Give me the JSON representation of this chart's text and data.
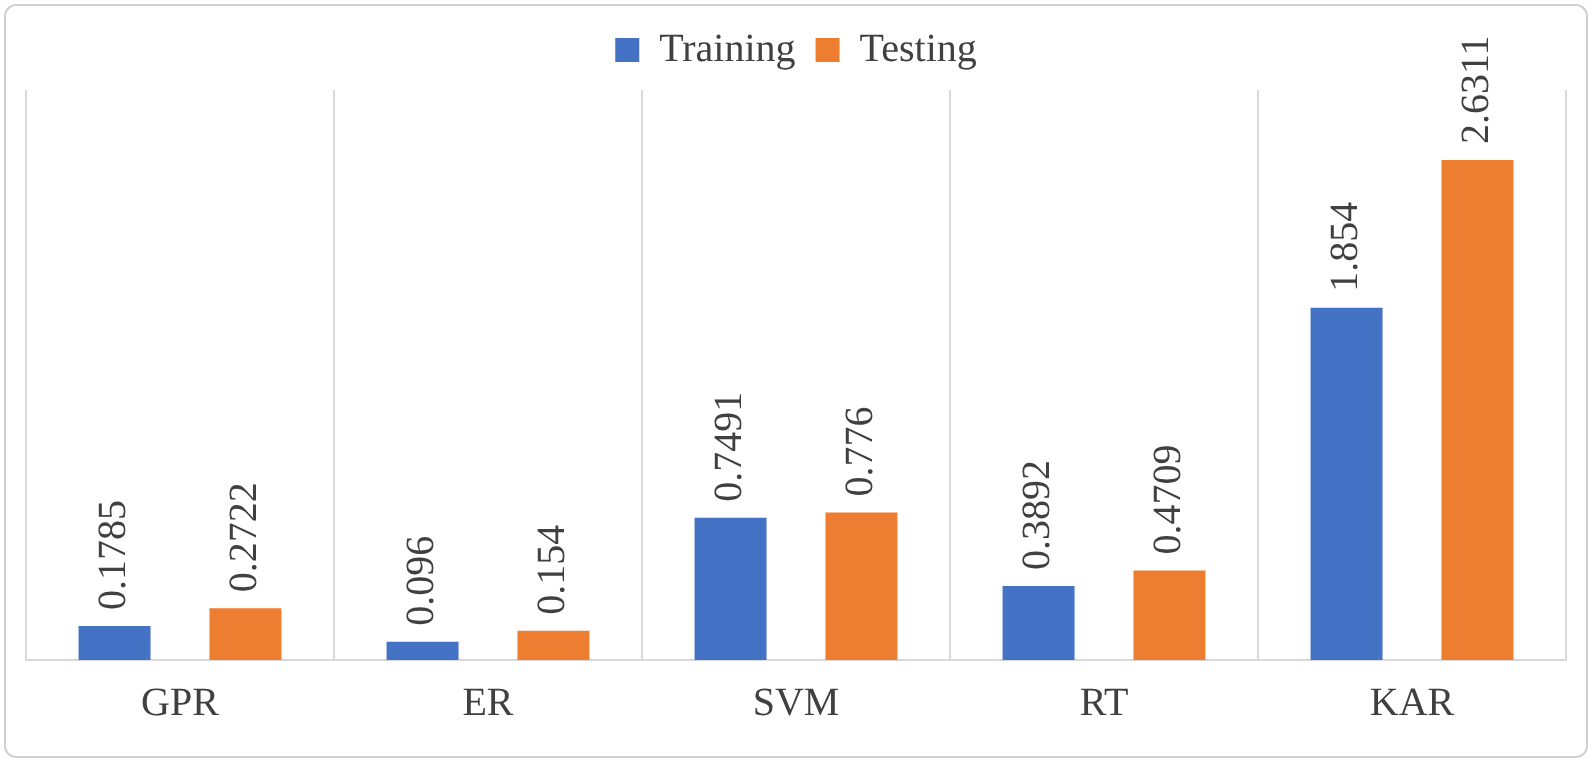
{
  "chart_data": {
    "type": "bar",
    "categories": [
      "GPR",
      "ER",
      "SVM",
      "RT",
      "KAR"
    ],
    "series": [
      {
        "name": "Training",
        "color": "#4472c4",
        "values": [
          0.1785,
          0.096,
          0.7491,
          0.3892,
          1.854
        ]
      },
      {
        "name": "Testing",
        "color": "#ed7d31",
        "values": [
          0.2722,
          0.154,
          0.776,
          0.4709,
          2.6311
        ]
      }
    ],
    "data_labels": true,
    "grid": "x",
    "legend": "top"
  }
}
